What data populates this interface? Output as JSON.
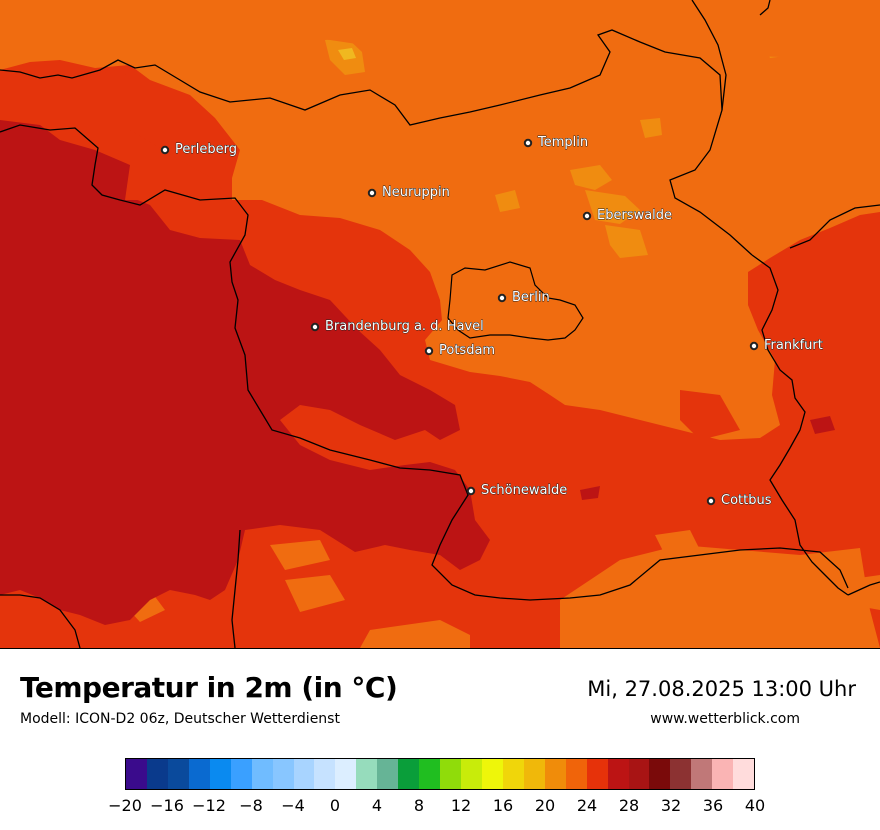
{
  "map": {
    "cities": [
      {
        "name": "Perleberg"
      },
      {
        "name": "Templin"
      },
      {
        "name": "Neuruppin"
      },
      {
        "name": "Eberswalde"
      },
      {
        "name": "Berlin"
      },
      {
        "name": "Brandenburg a. d. Havel"
      },
      {
        "name": "Potsdam"
      },
      {
        "name": "Frankfurt"
      },
      {
        "name": "Schönewalde"
      },
      {
        "name": "Cottbus"
      }
    ]
  },
  "legend": {
    "title": "Temperatur in 2m (in °C)",
    "model": "Modell: ICON-D2 06z, Deutscher Wetterdienst",
    "datetime": "Mi, 27.08.2025 13:00 Uhr",
    "website": "www.wetterblick.com",
    "colors": [
      "#3a0b8c",
      "#0a3a8c",
      "#0a4a9c",
      "#0a6ad0",
      "#0a8af0",
      "#3aa0ff",
      "#70bcff",
      "#88c6ff",
      "#a8d4ff",
      "#c6e2ff",
      "#dceeff",
      "#96dcbc",
      "#66b496",
      "#0a9e3a",
      "#20be20",
      "#90dc0a",
      "#c8ec0a",
      "#eef60a",
      "#f0d60a",
      "#f0b80a",
      "#f08c0a",
      "#f0640a",
      "#e6320a",
      "#bc1414",
      "#a81414",
      "#7a0a0a",
      "#8c3232",
      "#c07878",
      "#fab4b4",
      "#ffdcdc"
    ],
    "ticks": [
      "−20",
      "−16",
      "−12",
      "−8",
      "−4",
      "0",
      "4",
      "8",
      "12",
      "16",
      "20",
      "24",
      "28",
      "32",
      "36",
      "40"
    ],
    "tick_values": [
      -20,
      -16,
      -12,
      -8,
      -4,
      0,
      4,
      8,
      12,
      16,
      20,
      24,
      28,
      32,
      36,
      40
    ],
    "range": [
      -20,
      40
    ]
  }
}
